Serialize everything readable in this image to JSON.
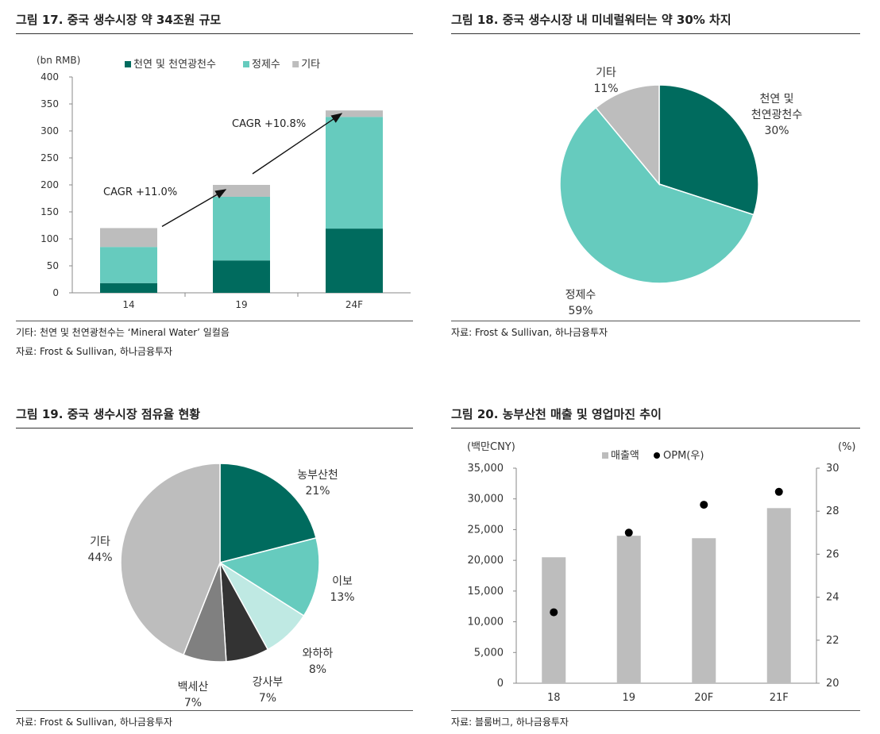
{
  "colors": {
    "dark": "#006B5E",
    "mid": "#66CBBE",
    "light": "#BFE9E3",
    "gray": "#BDBDBD",
    "darkgray": "#808080",
    "black": "#333333"
  },
  "charts": [
    {
      "title": "그림 17. 중국 생수시장 약 34조원 규모",
      "chart_data": {
        "type": "bar",
        "stacked": true,
        "unit": "(bn RMB)",
        "categories": [
          "14",
          "19",
          "24F"
        ],
        "series": [
          {
            "name": "천연 및 천연광천수",
            "values": [
              18,
              60,
              119
            ],
            "color": "#006B5E"
          },
          {
            "name": "정제수",
            "values": [
              67,
              118,
              207
            ],
            "color": "#66CBBE"
          },
          {
            "name": "기타",
            "values": [
              35,
              22,
              12
            ],
            "color": "#BDBDBD"
          }
        ],
        "ylim": [
          0,
          400
        ],
        "yticks": [
          0,
          50,
          100,
          150,
          200,
          250,
          300,
          350,
          400
        ],
        "annotations": [
          "CAGR +11.0%",
          "CAGR +10.8%"
        ],
        "legend": "top"
      },
      "notes": [
        "기타: 천연 및 천연광천수는 ‘Mineral Water’ 일컬음",
        "자료: Frost & Sullivan, 하나금융투자"
      ]
    },
    {
      "title": "그림 18. 중국 생수시장 내 미네럴워터는 약 30% 차지",
      "chart_data": {
        "type": "pie",
        "slices": [
          {
            "label": "천연 및\n천연광천수",
            "value": 30,
            "pct": "30%",
            "color": "#006B5E"
          },
          {
            "label": "정제수",
            "value": 59,
            "pct": "59%",
            "color": "#66CBBE"
          },
          {
            "label": "기타",
            "value": 11,
            "pct": "11%",
            "color": "#BDBDBD"
          }
        ]
      },
      "notes": [
        "자료: Frost & Sullivan, 하나금융투자"
      ]
    },
    {
      "title": "그림 19. 중국 생수시장 점유율 현황",
      "chart_data": {
        "type": "pie",
        "slices": [
          {
            "label": "농부산천",
            "value": 21,
            "pct": "21%",
            "color": "#006B5E"
          },
          {
            "label": "이보",
            "value": 13,
            "pct": "13%",
            "color": "#66CBBE"
          },
          {
            "label": "와하하",
            "value": 8,
            "pct": "8%",
            "color": "#BFE9E3"
          },
          {
            "label": "강사부",
            "value": 7,
            "pct": "7%",
            "color": "#333333"
          },
          {
            "label": "백세산",
            "value": 7,
            "pct": "7%",
            "color": "#808080"
          },
          {
            "label": "기타",
            "value": 44,
            "pct": "44%",
            "color": "#BDBDBD"
          }
        ]
      },
      "notes": [
        "자료: Frost & Sullivan, 하나금융투자"
      ]
    },
    {
      "title": "그림 20. 농부산천 매출 및 영업마진 추이",
      "chart_data": {
        "type": "bar",
        "categories": [
          "18",
          "19",
          "20F",
          "21F"
        ],
        "left_unit": "(백만CNY)",
        "right_unit": "(%)",
        "series": [
          {
            "name": "매출액",
            "type": "bar",
            "axis": "left",
            "values": [
              20500,
              24000,
              23600,
              28500
            ],
            "color": "#BDBDBD"
          },
          {
            "name": "OPM(우)",
            "type": "scatter",
            "axis": "right",
            "values": [
              23.3,
              27.0,
              28.3,
              28.9
            ],
            "color": "#000000"
          }
        ],
        "ylim": [
          0,
          35000
        ],
        "yticks": [
          "0",
          "5,000",
          "10,000",
          "15,000",
          "20,000",
          "25,000",
          "30,000",
          "35,000"
        ],
        "y2lim": [
          20,
          30
        ],
        "y2ticks": [
          20,
          22,
          24,
          26,
          28,
          30
        ],
        "legend": "top"
      },
      "notes": [
        "자료: 블룸버그, 하나금융투자"
      ]
    }
  ]
}
